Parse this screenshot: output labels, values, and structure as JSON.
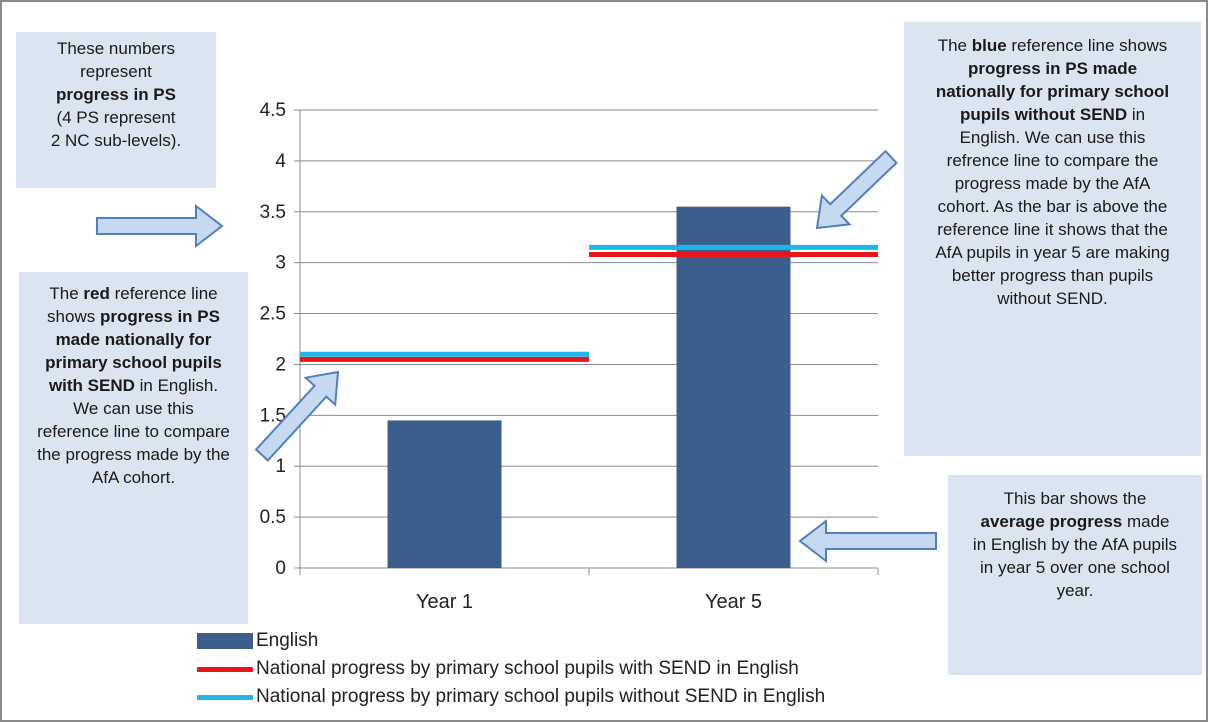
{
  "chart_data": {
    "type": "bar",
    "categories": [
      "Year 1",
      "Year 5"
    ],
    "series": [
      {
        "name": "English",
        "values": [
          1.45,
          3.55
        ],
        "color": "#3b5e8c"
      }
    ],
    "reference_lines": [
      {
        "name": "National progress by primary school pupils with SEND in English",
        "color": "#e8151b",
        "values": [
          2.05,
          3.08
        ]
      },
      {
        "name": "National progress by primary school pupils without SEND in English",
        "color": "#1fb6e8",
        "values": [
          2.1,
          3.15
        ]
      }
    ],
    "ylim": [
      0,
      4.5
    ],
    "yticks": [
      "0",
      "0.5",
      "1",
      "1.5",
      "2",
      "2.5",
      "3",
      "3.5",
      "4",
      "4.5"
    ],
    "grid": true,
    "legend_position": "bottom-left"
  },
  "callouts": {
    "ps_numbers": {
      "line1": "These numbers",
      "line2": "represent",
      "line3_bold": "progress in PS",
      "line4": "(4 PS represent",
      "line5": "2 NC sub-levels)."
    },
    "red_line": {
      "pre": "The ",
      "bold1": "red",
      "mid": " reference line shows ",
      "bold2": "progress in PS made nationally for primary school pupils with SEND",
      "post": " in English. We can use this reference line to compare the progress made by the AfA cohort."
    },
    "blue_line": {
      "pre": "The ",
      "bold1": "blue",
      "mid": " reference line shows ",
      "bold2": "progress in PS made nationally for primary school pupils without SEND",
      "post": " in English. We can use this refrence line to compare the progress made by the AfA cohort. As the bar is above the reference line it shows that the AfA pupils in year 5 are making better progress than pupils without SEND."
    },
    "bar": {
      "pre": "This bar shows the ",
      "bold": "average progress",
      "post": " made in English by the AfA pupils in year 5 over one school year."
    }
  }
}
